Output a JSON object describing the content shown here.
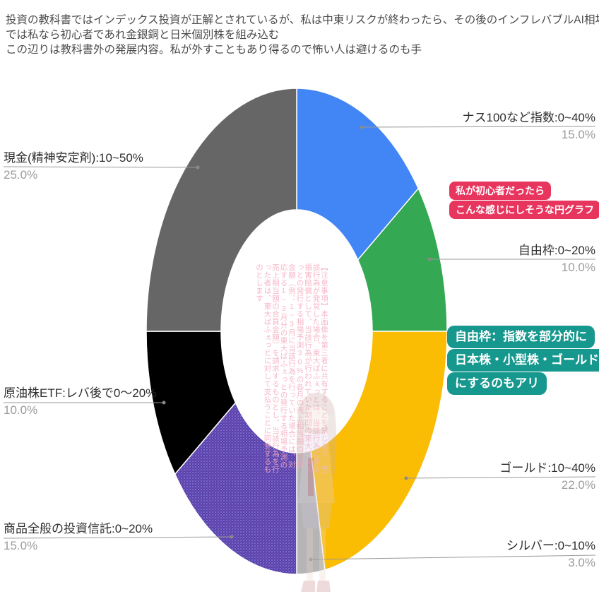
{
  "header": {
    "lines": [
      "投資の教科書ではインデックス投資が正解とされているが、私は中東リスクが終わったら、その後のインフレバブルAI相場",
      "では私なら初心者であれ金銀銅と日米個別株を組み込む",
      "この辺りは教科書外の発展内容。私が外すこともあり得るので怖い人は避けるのも手"
    ]
  },
  "chart_data": {
    "type": "pie",
    "hole": 0.5,
    "direction": "clockwise",
    "start_angle": "top",
    "legend_position": "none",
    "slices": [
      {
        "label": "ナス100など指数:0~40%",
        "value": 15.0,
        "pct_label": "15.0%",
        "color": "#4285F4"
      },
      {
        "label": "自由枠:0~20%",
        "value": 10.0,
        "pct_label": "10.0%",
        "color": "#34A853"
      },
      {
        "label": "ゴールド:10~40%",
        "value": 22.0,
        "pct_label": "22.0%",
        "color": "#FBBC04"
      },
      {
        "label": "シルバー:0~10%",
        "value": 3.0,
        "pct_label": "3.0%",
        "color": "#B5B5B5"
      },
      {
        "label": "商品全般の投資信託:0~20%",
        "value": 15.0,
        "pct_label": "15.0%",
        "color": "#5C3EA6",
        "texture": "dotted",
        "texture_dot_color": "#7B7BD9"
      },
      {
        "label": "原油株ETF:レバ後で0～20%",
        "value": 10.0,
        "pct_label": "10.0%",
        "color": "#000000"
      },
      {
        "label": "現金(精神安定剤):10~50%",
        "value": 25.0,
        "pct_label": "25.0%",
        "color": "#666666"
      }
    ]
  },
  "annotations": {
    "red_badge": {
      "bg_color": "#e8355e",
      "lines": [
        "私が初心者だったら",
        "こんな感じにしそうな円グラフ"
      ]
    },
    "teal_badge": {
      "bg_color": "#17988e",
      "lines": [
        "自由枠：指数を部分的に",
        "日本株・小型株・ゴールド",
        "にするのもアリ"
      ]
    }
  },
  "watermark": {
    "text": "【注意事項】本画像を第三者に共有することを禁じます。当該行為が発覚した場合、東大ばふぇっとは、当該行為に係る損害賠償として、当該行為が行われていた期間の東大ばふぇっとの発行する相場予測30%の各月の売上相当額の合算金額（例：1~3月に当該行為を行っていた場合には、対応する1~3月分の東大ばふぇっとの発行する相場予測の売上相当額の合算金額）を請求するものとし、当該行為を行った者は、東大ばふぇっとに対して支払うことに同意するものとします"
  },
  "style": {
    "leader_line_color": "#999999",
    "label_text_color": "#2e2e2e",
    "pct_text_color": "#9c9c9c",
    "header_text_color": "#4c4c4c"
  }
}
